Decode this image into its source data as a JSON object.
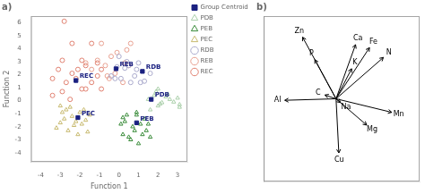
{
  "chart_data": [
    {
      "type": "scatter",
      "title": "a)",
      "xlabel": "Function 1",
      "ylabel": "Function 2",
      "xlim": [
        -4.5,
        3.5
      ],
      "ylim": [
        -4.7,
        6.5
      ],
      "xticks": [
        -4,
        -3,
        -2,
        -1,
        0,
        1,
        2,
        3
      ],
      "yticks": [
        -4,
        -3,
        -2,
        -1,
        0,
        1,
        2,
        3,
        4,
        5,
        6
      ],
      "grid": false,
      "legend": "upper right",
      "series": [
        {
          "name": "PDB",
          "color": "#aacfaa",
          "marker": "triangle",
          "values": [
            [
              2.0,
              0.9
            ],
            [
              2.5,
              0.5
            ],
            [
              3.0,
              0.2
            ],
            [
              2.8,
              -0.1
            ],
            [
              3.1,
              -0.3
            ],
            [
              2.2,
              -0.15
            ],
            [
              1.8,
              0.4
            ],
            [
              1.5,
              0.1
            ],
            [
              2.0,
              -0.4
            ],
            [
              2.6,
              0.1
            ],
            [
              1.9,
              0.7
            ],
            [
              2.4,
              0.3
            ],
            [
              3.1,
              -0.5
            ],
            [
              2.1,
              -0.25
            ],
            [
              1.6,
              -0.7
            ]
          ]
        },
        {
          "name": "PEB",
          "color": "#3a8c3a",
          "marker": "triangle",
          "values": [
            [
              0.4,
              -1.1
            ],
            [
              0.8,
              -2.3
            ],
            [
              1.2,
              -2.6
            ],
            [
              1.5,
              -1.8
            ],
            [
              0.1,
              -1.8
            ],
            [
              0.5,
              -2.8
            ],
            [
              1.0,
              -3.3
            ],
            [
              0.3,
              -1.6
            ],
            [
              1.3,
              -1.4
            ],
            [
              0.7,
              -2.0
            ],
            [
              1.6,
              -2.8
            ],
            [
              0.2,
              -2.6
            ],
            [
              0.9,
              -0.9
            ],
            [
              1.4,
              -2.3
            ],
            [
              0.6,
              -3.0
            ],
            [
              0.2,
              -1.3
            ],
            [
              1.1,
              -1.8
            ],
            [
              0.9,
              -1.1
            ]
          ]
        },
        {
          "name": "PEC",
          "color": "#c8ba70",
          "marker": "triangle",
          "values": [
            [
              -2.5,
              -0.5
            ],
            [
              -1.8,
              -0.7
            ],
            [
              -2.0,
              -0.9
            ],
            [
              -2.8,
              -1.4
            ],
            [
              -1.5,
              -1.1
            ],
            [
              -2.3,
              -1.9
            ],
            [
              -3.0,
              -1.7
            ],
            [
              -2.6,
              -2.3
            ],
            [
              -1.9,
              -1.8
            ],
            [
              -2.1,
              -2.6
            ],
            [
              -2.4,
              -1.2
            ],
            [
              -1.7,
              -1.5
            ],
            [
              -3.2,
              -2.1
            ],
            [
              -2.9,
              -0.9
            ],
            [
              -1.6,
              -2.4
            ],
            [
              -2.7,
              -0.7
            ],
            [
              -2.2,
              -1.6
            ],
            [
              -3.0,
              -0.4
            ]
          ]
        },
        {
          "name": "RDB",
          "color": "#aaaacc",
          "marker": "circle",
          "values": [
            [
              -0.1,
              2.6
            ],
            [
              0.1,
              1.7
            ],
            [
              0.6,
              1.4
            ],
            [
              0.9,
              2.4
            ],
            [
              0.4,
              3.0
            ],
            [
              -0.4,
              1.9
            ],
            [
              1.1,
              1.4
            ],
            [
              0.8,
              1.9
            ],
            [
              1.6,
              2.1
            ],
            [
              -0.2,
              1.7
            ],
            [
              1.0,
              2.9
            ],
            [
              0.3,
              2.5
            ],
            [
              0.0,
              3.4
            ],
            [
              1.3,
              1.5
            ],
            [
              0.5,
              2.7
            ]
          ]
        },
        {
          "name": "REB",
          "color": "#e8a090",
          "marker": "circle",
          "values": [
            [
              -0.4,
              3.4
            ],
            [
              0.3,
              2.9
            ],
            [
              -0.7,
              2.7
            ],
            [
              0.6,
              4.4
            ],
            [
              -1.1,
              3.1
            ],
            [
              -0.2,
              2.1
            ],
            [
              0.4,
              3.9
            ],
            [
              -1.4,
              2.4
            ],
            [
              -0.5,
              1.7
            ],
            [
              0.2,
              1.4
            ],
            [
              -0.9,
              4.4
            ],
            [
              -0.1,
              3.7
            ],
            [
              -1.7,
              2.9
            ],
            [
              0.5,
              2.7
            ],
            [
              -0.6,
              1.9
            ]
          ]
        },
        {
          "name": "REC",
          "color": "#e08070",
          "marker": "circle",
          "values": [
            [
              -2.8,
              6.1
            ],
            [
              -2.4,
              4.4
            ],
            [
              -1.4,
              4.4
            ],
            [
              -2.9,
              3.1
            ],
            [
              -1.9,
              3.1
            ],
            [
              -1.1,
              2.9
            ],
            [
              -3.1,
              2.4
            ],
            [
              -1.7,
              2.7
            ],
            [
              -2.4,
              2.1
            ],
            [
              -0.9,
              2.4
            ],
            [
              -3.4,
              1.7
            ],
            [
              -2.7,
              1.4
            ],
            [
              -1.4,
              1.4
            ],
            [
              -1.9,
              0.9
            ],
            [
              -2.9,
              0.7
            ],
            [
              -1.1,
              1.9
            ],
            [
              -2.2,
              1.7
            ],
            [
              -3.4,
              0.4
            ],
            [
              -1.7,
              0.9
            ],
            [
              -2.5,
              0.1
            ],
            [
              -0.9,
              0.9
            ],
            [
              -2.1,
              2.4
            ]
          ]
        },
        {
          "name": "Group Centroid",
          "color": "#1a2080",
          "marker": "square",
          "values": [
            [
              1.65,
              0.1
            ],
            [
              0.9,
              -1.7
            ],
            [
              -2.1,
              -1.3
            ],
            [
              1.2,
              2.25
            ],
            [
              -0.15,
              2.45
            ],
            [
              -2.2,
              1.55
            ]
          ],
          "point_labels": [
            "PDB",
            "PEB",
            "PEC",
            "RDB",
            "REB",
            "REC"
          ]
        }
      ]
    },
    {
      "type": "vector",
      "title": "b)",
      "xlim": [
        -1.3,
        1.5
      ],
      "ylim": [
        -1.1,
        1.1
      ],
      "tick_labels": false,
      "grid": false,
      "color": "#000000",
      "origin": [
        0.0,
        0.0
      ],
      "vectors": [
        {
          "name": "Zn",
          "values": [
            -0.6,
            0.82
          ]
        },
        {
          "name": "Fe",
          "values": [
            0.6,
            0.68
          ]
        },
        {
          "name": "N",
          "values": [
            0.85,
            0.55
          ]
        },
        {
          "name": "Ca",
          "values": [
            0.35,
            0.72
          ]
        },
        {
          "name": "P",
          "values": [
            -0.38,
            0.52
          ]
        },
        {
          "name": "K",
          "values": [
            0.28,
            0.4
          ]
        },
        {
          "name": "C",
          "values": [
            -0.2,
            0.05
          ]
        },
        {
          "name": "Na",
          "values": [
            0.08,
            -0.05
          ]
        },
        {
          "name": "Al",
          "values": [
            -0.92,
            -0.02
          ]
        },
        {
          "name": "Mg",
          "values": [
            0.55,
            -0.35
          ]
        },
        {
          "name": "Mn",
          "values": [
            1.0,
            -0.18
          ]
        },
        {
          "name": "Cu",
          "values": [
            0.05,
            -0.72
          ]
        }
      ]
    }
  ]
}
